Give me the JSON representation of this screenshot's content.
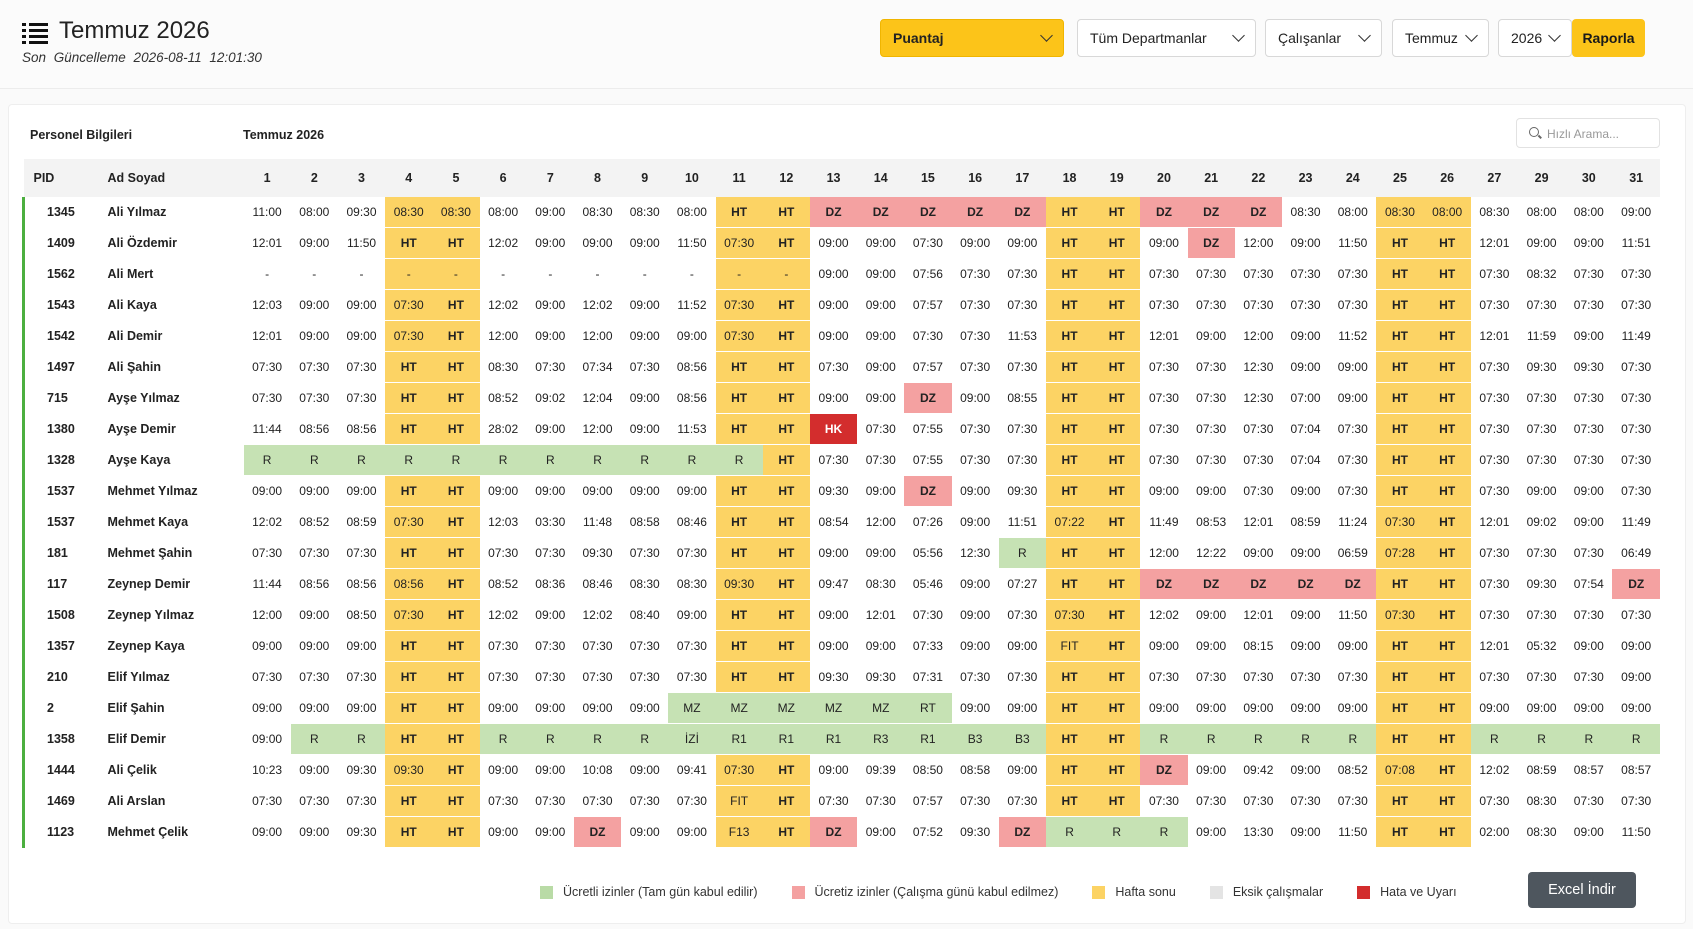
{
  "header": {
    "title": "Temmuz 2026",
    "subtitle": "Son Güncelleme 2026-08-11 12:01:30"
  },
  "filters": {
    "type": "Puantaj",
    "department": "Tüm Departmanlar",
    "employees": "Çalışanlar",
    "month": "Temmuz",
    "year": "2026",
    "report_button": "Raporla"
  },
  "table": {
    "section_left": "Personel Bilgileri",
    "section_month": "Temmuz 2026",
    "search_placeholder": "Hızlı Arama...",
    "col_pid": "PID",
    "col_name": "Ad Soyad",
    "days": [
      "1",
      "2",
      "3",
      "4",
      "5",
      "6",
      "7",
      "8",
      "9",
      "10",
      "11",
      "12",
      "13",
      "14",
      "15",
      "16",
      "17",
      "18",
      "19",
      "20",
      "21",
      "22",
      "23",
      "24",
      "25",
      "26",
      "27",
      "29",
      "30",
      "31"
    ],
    "weekend_cols": [
      3,
      4,
      10,
      11,
      17,
      18,
      24,
      25
    ],
    "rows": [
      {
        "pid": "1345",
        "name": "Ali Yılmaz",
        "cells": [
          "11:00",
          "08:00",
          "09:30",
          "08:30",
          "08:30",
          "08:00",
          "09:00",
          "08:30",
          "08:30",
          "08:00",
          "HT",
          "HT",
          "DZ",
          "DZ",
          "DZ",
          "DZ",
          "DZ",
          "HT",
          "HT",
          "DZ",
          "DZ",
          "DZ",
          "08:30",
          "08:00",
          "08:30",
          "08:00",
          "08:30",
          "08:00",
          "08:00",
          "09:00"
        ]
      },
      {
        "pid": "1409",
        "name": "Ali Özdemir",
        "cells": [
          "12:01",
          "09:00",
          "11:50",
          "HT",
          "HT",
          "12:02",
          "09:00",
          "09:00",
          "09:00",
          "11:50",
          "07:30",
          "HT",
          "09:00",
          "09:00",
          "07:30",
          "09:00",
          "09:00",
          "HT",
          "HT",
          "09:00",
          "DZ",
          "12:00",
          "09:00",
          "11:50",
          "HT",
          "HT",
          "12:01",
          "09:00",
          "09:00",
          "11:51"
        ]
      },
      {
        "pid": "1562",
        "name": "Ali Mert",
        "cells": [
          "-",
          "-",
          "-",
          "-",
          "-",
          "-",
          "-",
          "-",
          "-",
          "-",
          "-",
          "-",
          "09:00",
          "09:00",
          "07:56",
          "07:30",
          "07:30",
          "HT",
          "HT",
          "07:30",
          "07:30",
          "07:30",
          "07:30",
          "07:30",
          "HT",
          "HT",
          "07:30",
          "08:32",
          "07:30",
          "07:30"
        ]
      },
      {
        "pid": "1543",
        "name": "Ali Kaya",
        "cells": [
          "12:03",
          "09:00",
          "09:00",
          "07:30",
          "HT",
          "12:02",
          "09:00",
          "12:02",
          "09:00",
          "11:52",
          "07:30",
          "HT",
          "09:00",
          "09:00",
          "07:57",
          "07:30",
          "07:30",
          "HT",
          "HT",
          "07:30",
          "07:30",
          "07:30",
          "07:30",
          "07:30",
          "HT",
          "HT",
          "07:30",
          "07:30",
          "07:30",
          "07:30"
        ]
      },
      {
        "pid": "1542",
        "name": "Ali Demir",
        "cells": [
          "12:01",
          "09:00",
          "09:00",
          "07:30",
          "HT",
          "12:00",
          "09:00",
          "12:00",
          "09:00",
          "09:00",
          "07:30",
          "HT",
          "09:00",
          "09:00",
          "07:30",
          "07:30",
          "11:53",
          "HT",
          "HT",
          "12:01",
          "09:00",
          "12:00",
          "09:00",
          "11:52",
          "HT",
          "HT",
          "12:01",
          "11:59",
          "09:00",
          "11:49"
        ]
      },
      {
        "pid": "1497",
        "name": "Ali Şahin",
        "cells": [
          "07:30",
          "07:30",
          "07:30",
          "HT",
          "HT",
          "08:30",
          "07:30",
          "07:34",
          "07:30",
          "08:56",
          "HT",
          "HT",
          "07:30",
          "09:00",
          "07:57",
          "07:30",
          "07:30",
          "HT",
          "HT",
          "07:30",
          "07:30",
          "12:30",
          "09:00",
          "09:00",
          "HT",
          "HT",
          "07:30",
          "09:30",
          "09:30",
          "07:30"
        ]
      },
      {
        "pid": "715",
        "name": "Ayşe Yılmaz",
        "cells": [
          "07:30",
          "07:30",
          "07:30",
          "HT",
          "HT",
          "08:52",
          "09:02",
          "12:04",
          "09:00",
          "08:56",
          "HT",
          "HT",
          "09:00",
          "09:00",
          "DZ",
          "09:00",
          "08:55",
          "HT",
          "HT",
          "07:30",
          "07:30",
          "12:30",
          "07:00",
          "09:00",
          "HT",
          "HT",
          "07:30",
          "07:30",
          "07:30",
          "07:30"
        ]
      },
      {
        "pid": "1380",
        "name": "Ayşe Demir",
        "cells": [
          "11:44",
          "08:56",
          "08:56",
          "HT",
          "HT",
          "28:02",
          "09:00",
          "12:00",
          "09:00",
          "11:53",
          "HT",
          "HT",
          "HK",
          "07:30",
          "07:55",
          "07:30",
          "07:30",
          "HT",
          "HT",
          "07:30",
          "07:30",
          "07:30",
          "07:04",
          "07:30",
          "HT",
          "HT",
          "07:30",
          "07:30",
          "07:30",
          "07:30"
        ]
      },
      {
        "pid": "1328",
        "name": "Ayşe Kaya",
        "cells": [
          "R",
          "R",
          "R",
          "R",
          "R",
          "R",
          "R",
          "R",
          "R",
          "R",
          "R",
          "HT",
          "07:30",
          "07:30",
          "07:55",
          "07:30",
          "07:30",
          "HT",
          "HT",
          "07:30",
          "07:30",
          "07:30",
          "07:04",
          "07:30",
          "HT",
          "HT",
          "07:30",
          "07:30",
          "07:30",
          "07:30"
        ]
      },
      {
        "pid": "1537",
        "name": "Mehmet Yılmaz",
        "cells": [
          "09:00",
          "09:00",
          "09:00",
          "HT",
          "HT",
          "09:00",
          "09:00",
          "09:00",
          "09:00",
          "09:00",
          "HT",
          "HT",
          "09:30",
          "09:00",
          "DZ",
          "09:00",
          "09:30",
          "HT",
          "HT",
          "09:00",
          "09:00",
          "07:30",
          "09:00",
          "07:30",
          "HT",
          "HT",
          "07:30",
          "09:00",
          "09:00",
          "07:30"
        ]
      },
      {
        "pid": "1537",
        "name": "Mehmet Kaya",
        "cells": [
          "12:02",
          "08:52",
          "08:59",
          "07:30",
          "HT",
          "12:03",
          "03:30",
          "11:48",
          "08:58",
          "08:46",
          "HT",
          "HT",
          "08:54",
          "12:00",
          "07:26",
          "09:00",
          "11:51",
          "07:22",
          "HT",
          "11:49",
          "08:53",
          "12:01",
          "08:59",
          "11:24",
          "07:30",
          "HT",
          "12:01",
          "09:02",
          "09:00",
          "11:49"
        ]
      },
      {
        "pid": "181",
        "name": "Mehmet Şahin",
        "cells": [
          "07:30",
          "07:30",
          "07:30",
          "HT",
          "HT",
          "07:30",
          "07:30",
          "09:30",
          "07:30",
          "07:30",
          "HT",
          "HT",
          "09:00",
          "09:00",
          "05:56",
          "12:30",
          "R",
          "HT",
          "HT",
          "12:00",
          "12:22",
          "09:00",
          "09:00",
          "06:59",
          "07:28",
          "HT",
          "07:30",
          "07:30",
          "07:30",
          "06:49"
        ]
      },
      {
        "pid": "117",
        "name": "Zeynep Demir",
        "cells": [
          "11:44",
          "08:56",
          "08:56",
          "08:56",
          "HT",
          "08:52",
          "08:36",
          "08:46",
          "08:30",
          "08:30",
          "09:30",
          "HT",
          "09:47",
          "08:30",
          "05:46",
          "09:00",
          "07:27",
          "HT",
          "HT",
          "DZ",
          "DZ",
          "DZ",
          "DZ",
          "DZ",
          "HT",
          "HT",
          "07:30",
          "09:30",
          "07:54",
          "DZ"
        ]
      },
      {
        "pid": "1508",
        "name": "Zeynep Yılmaz",
        "cells": [
          "12:00",
          "09:00",
          "08:50",
          "07:30",
          "HT",
          "12:02",
          "09:00",
          "12:02",
          "08:40",
          "09:00",
          "HT",
          "HT",
          "09:00",
          "12:01",
          "07:30",
          "09:00",
          "07:30",
          "07:30",
          "HT",
          "12:02",
          "09:00",
          "12:01",
          "09:00",
          "11:50",
          "07:30",
          "HT",
          "07:30",
          "07:30",
          "07:30",
          "07:30"
        ]
      },
      {
        "pid": "1357",
        "name": "Zeynep Kaya",
        "cells": [
          "09:00",
          "09:00",
          "09:00",
          "HT",
          "HT",
          "07:30",
          "07:30",
          "07:30",
          "07:30",
          "07:30",
          "HT",
          "HT",
          "09:00",
          "09:00",
          "07:33",
          "09:00",
          "09:00",
          "FIT",
          "HT",
          "09:00",
          "09:00",
          "08:15",
          "09:00",
          "09:00",
          "HT",
          "HT",
          "12:01",
          "05:32",
          "09:00",
          "09:00"
        ]
      },
      {
        "pid": "210",
        "name": "Elif Yılmaz",
        "cells": [
          "07:30",
          "07:30",
          "07:30",
          "HT",
          "HT",
          "07:30",
          "07:30",
          "07:30",
          "07:30",
          "07:30",
          "HT",
          "HT",
          "09:30",
          "09:30",
          "07:31",
          "07:30",
          "07:30",
          "HT",
          "HT",
          "07:30",
          "07:30",
          "07:30",
          "07:30",
          "07:30",
          "HT",
          "HT",
          "07:30",
          "07:30",
          "07:30",
          "09:00"
        ]
      },
      {
        "pid": "2",
        "name": "Elif Şahin",
        "cells": [
          "09:00",
          "09:00",
          "09:00",
          "HT",
          "HT",
          "09:00",
          "09:00",
          "09:00",
          "09:00",
          "MZ",
          "MZ",
          "MZ",
          "MZ",
          "MZ",
          "RT",
          "09:00",
          "09:00",
          "HT",
          "HT",
          "09:00",
          "09:00",
          "09:00",
          "09:00",
          "09:00",
          "HT",
          "HT",
          "09:00",
          "09:00",
          "09:00",
          "09:00"
        ]
      },
      {
        "pid": "1358",
        "name": "Elif Demir",
        "cells": [
          "09:00",
          "R",
          "R",
          "HT",
          "HT",
          "R",
          "R",
          "R",
          "R",
          "İZİ",
          "R1",
          "R1",
          "R1",
          "R3",
          "R1",
          "B3",
          "B3",
          "HT",
          "HT",
          "R",
          "R",
          "R",
          "R",
          "R",
          "HT",
          "HT",
          "R",
          "R",
          "R",
          "R"
        ]
      },
      {
        "pid": "1444",
        "name": "Ali Çelik",
        "cells": [
          "10:23",
          "09:00",
          "09:30",
          "09:30",
          "HT",
          "09:00",
          "09:00",
          "10:08",
          "09:00",
          "09:41",
          "07:30",
          "HT",
          "09:00",
          "09:39",
          "08:50",
          "08:58",
          "09:00",
          "HT",
          "HT",
          "DZ",
          "09:00",
          "09:42",
          "09:00",
          "08:52",
          "07:08",
          "HT",
          "12:02",
          "08:59",
          "08:57",
          "08:57"
        ]
      },
      {
        "pid": "1469",
        "name": "Ali Arslan",
        "cells": [
          "07:30",
          "07:30",
          "07:30",
          "HT",
          "HT",
          "07:30",
          "07:30",
          "07:30",
          "07:30",
          "07:30",
          "FIT",
          "HT",
          "07:30",
          "07:30",
          "07:57",
          "07:30",
          "07:30",
          "HT",
          "HT",
          "07:30",
          "07:30",
          "07:30",
          "07:30",
          "07:30",
          "HT",
          "HT",
          "07:30",
          "08:30",
          "07:30",
          "07:30"
        ]
      },
      {
        "pid": "1123",
        "name": "Mehmet Çelik",
        "cells": [
          "09:00",
          "09:00",
          "09:30",
          "HT",
          "HT",
          "09:00",
          "09:00",
          "DZ",
          "09:00",
          "09:00",
          "F13",
          "HT",
          "DZ",
          "09:00",
          "07:52",
          "09:30",
          "DZ",
          "R",
          "R",
          "R",
          "09:00",
          "13:30",
          "09:00",
          "11:50",
          "HT",
          "HT",
          "02:00",
          "08:30",
          "09:00",
          "11:50"
        ]
      }
    ]
  },
  "legend": [
    {
      "label": "Ücretli izinler (Tam gün kabul edilir)",
      "color": "#b9dba6"
    },
    {
      "label": "Ücretiz izinler (Çalışma günü kabul edilmez)",
      "color": "#f4a1a1"
    },
    {
      "label": "Hafta sonu",
      "color": "#fcd364"
    },
    {
      "label": "Eksik çalışmalar",
      "color": "#e4e4e4"
    },
    {
      "label": "Hata ve Uyarı",
      "color": "#d32d2d"
    }
  ],
  "excel_button": "Excel İndir"
}
